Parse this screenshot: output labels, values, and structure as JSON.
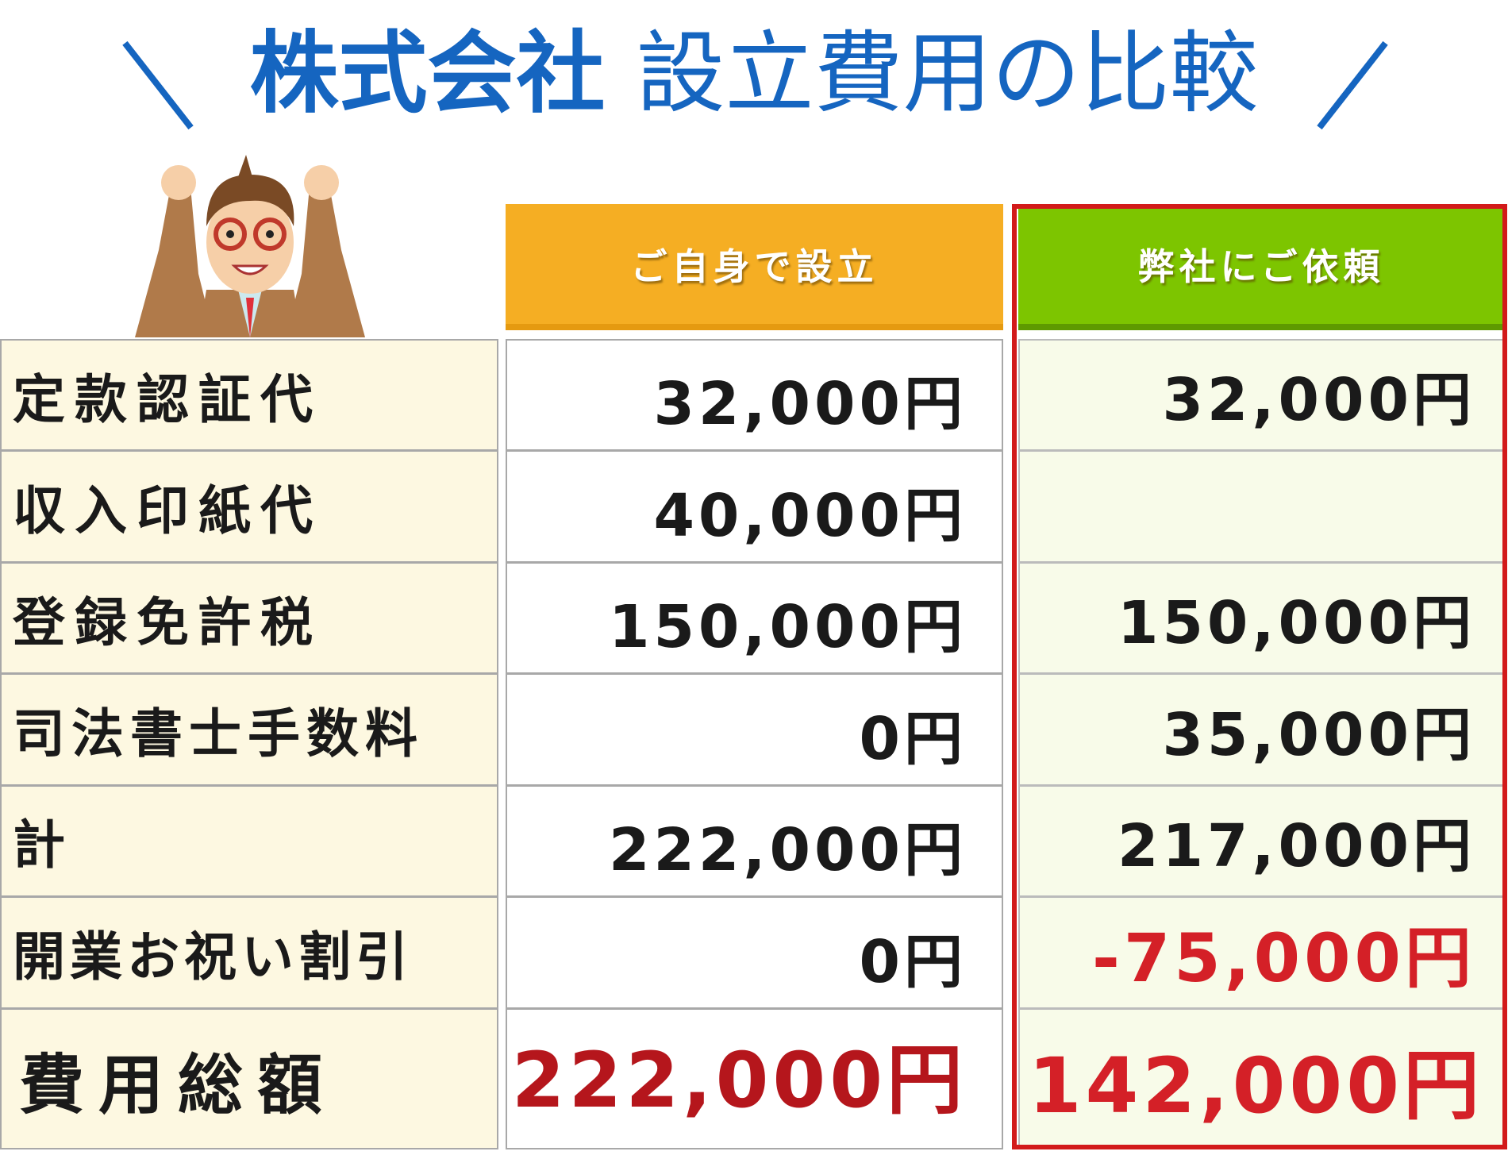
{
  "title": {
    "bold": "株式会社",
    "light": "設立費用の比較"
  },
  "columns": {
    "self": "ご自身で設立",
    "firm": "弊社にご依頼"
  },
  "rows": [
    {
      "label": "定款認証代",
      "self": "32,000円",
      "firm": "32,000円"
    },
    {
      "label": "収入印紙代",
      "self": "40,000円",
      "firm": ""
    },
    {
      "label": "登録免許税",
      "self": "150,000円",
      "firm": "150,000円"
    },
    {
      "label": "司法書士手数料",
      "self": "0円",
      "firm": "35,000円"
    },
    {
      "label": "計",
      "self": "222,000円",
      "firm": "217,000円"
    },
    {
      "label": "開業お祝い割引",
      "self": "0円",
      "firm": "-75,000円"
    },
    {
      "label": "費用総額",
      "self": "222,000円",
      "firm": "142,000円"
    }
  ],
  "colors": {
    "title": "#1565c0",
    "self_header": "#f5ae23",
    "firm_header": "#7dc500",
    "highlight": "#d42027"
  },
  "icons": {
    "character": "cheering-man-with-glasses-illustration"
  }
}
